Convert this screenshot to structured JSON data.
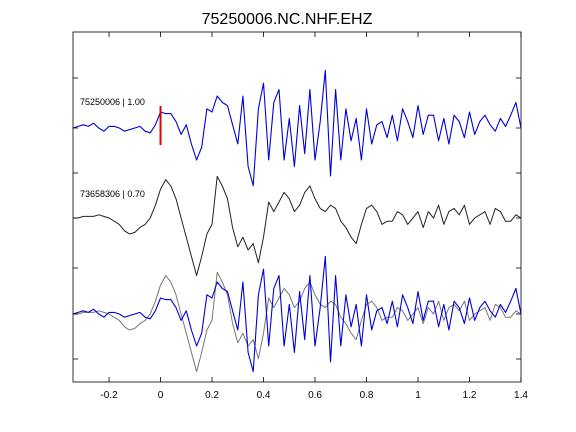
{
  "chart_data": {
    "type": "line",
    "title": "75250006.NC.NHF.EHZ",
    "xlabel": "",
    "ylabel": "",
    "xlim": [
      -0.34,
      1.4
    ],
    "x_ticks": [
      "-0.2",
      "0",
      "0.2",
      "0.4",
      "0.6",
      "0.8",
      "1",
      "1.2",
      "1.4"
    ],
    "grid": false,
    "pick_marker": {
      "x": 0,
      "color": "#e00000"
    },
    "colors": {
      "target": "#0000dd",
      "template": "#222222",
      "overlay_template": "#777777"
    },
    "series": [
      {
        "name": "75250006 | 1.00",
        "x": [
          -0.34,
          -0.32,
          -0.3,
          -0.28,
          -0.26,
          -0.24,
          -0.22,
          -0.2,
          -0.18,
          -0.16,
          -0.14,
          -0.12,
          -0.1,
          -0.08,
          -0.06,
          -0.04,
          -0.02,
          0,
          0.02,
          0.04,
          0.06,
          0.08,
          0.1,
          0.12,
          0.14,
          0.16,
          0.18,
          0.2,
          0.22,
          0.24,
          0.26,
          0.28,
          0.3,
          0.32,
          0.34,
          0.36,
          0.38,
          0.4,
          0.42,
          0.44,
          0.46,
          0.48,
          0.5,
          0.52,
          0.54,
          0.56,
          0.58,
          0.6,
          0.62,
          0.64,
          0.66,
          0.68,
          0.7,
          0.72,
          0.74,
          0.76,
          0.78,
          0.8,
          0.82,
          0.84,
          0.86,
          0.88,
          0.9,
          0.92,
          0.94,
          0.96,
          0.98,
          1,
          1.02,
          1.04,
          1.06,
          1.08,
          1.1,
          1.12,
          1.14,
          1.16,
          1.18,
          1.2,
          1.22,
          1.24,
          1.26,
          1.28,
          1.3,
          1.32,
          1.34,
          1.36,
          1.38,
          1.4
        ],
        "values": [
          0,
          0.05,
          0.1,
          0.05,
          0.15,
          0,
          -0.1,
          0.05,
          0.05,
          0,
          -0.1,
          -0.05,
          0,
          0.05,
          -0.1,
          -0.15,
          0.1,
          0.5,
          0.45,
          0.45,
          0.2,
          -0.2,
          0.1,
          -0.5,
          -1.0,
          -0.6,
          0.6,
          0.5,
          1.0,
          0.8,
          0.7,
          0.1,
          -0.5,
          1.0,
          -1.2,
          -1.8,
          0.6,
          1.4,
          -1.0,
          0.8,
          1.2,
          -1.0,
          0.3,
          -1.2,
          0.7,
          -0.8,
          1.2,
          -1.0,
          0.2,
          1.8,
          -1.5,
          1.2,
          -1.0,
          0.6,
          -0.4,
          0.3,
          -1.0,
          0.6,
          -0.5,
          0.1,
          0.2,
          -0.3,
          0.4,
          -0.4,
          0.6,
          0.2,
          -0.3,
          0.7,
          -0.2,
          0.4,
          0.4,
          -0.4,
          0.3,
          -0.5,
          0.4,
          0.2,
          -0.3,
          0.5,
          -0.2,
          0.2,
          0.4,
          0.1,
          -0.1,
          0.3,
          0.05,
          0.4,
          0.8,
          0.0
        ]
      },
      {
        "name": "73658306 | 0.70",
        "x": [
          -0.34,
          -0.32,
          -0.3,
          -0.28,
          -0.26,
          -0.24,
          -0.22,
          -0.2,
          -0.18,
          -0.16,
          -0.14,
          -0.12,
          -0.1,
          -0.08,
          -0.06,
          -0.04,
          -0.02,
          0,
          0.02,
          0.04,
          0.06,
          0.08,
          0.1,
          0.12,
          0.14,
          0.16,
          0.18,
          0.2,
          0.22,
          0.24,
          0.26,
          0.28,
          0.3,
          0.32,
          0.34,
          0.36,
          0.38,
          0.4,
          0.42,
          0.44,
          0.46,
          0.48,
          0.5,
          0.52,
          0.54,
          0.56,
          0.58,
          0.6,
          0.62,
          0.64,
          0.66,
          0.68,
          0.7,
          0.72,
          0.74,
          0.76,
          0.78,
          0.8,
          0.82,
          0.84,
          0.86,
          0.88,
          0.9,
          0.92,
          0.94,
          0.96,
          0.98,
          1,
          1.02,
          1.04,
          1.06,
          1.08,
          1.1,
          1.12,
          1.14,
          1.16,
          1.18,
          1.2,
          1.22,
          1.24,
          1.26,
          1.28,
          1.3,
          1.32,
          1.34,
          1.36,
          1.38,
          1.4
        ],
        "values": [
          0,
          0,
          0.05,
          0.05,
          0.05,
          0.1,
          0.05,
          0,
          -0.1,
          -0.2,
          -0.4,
          -0.5,
          -0.45,
          -0.3,
          -0.2,
          0,
          0.4,
          0.9,
          1.2,
          1.0,
          0.6,
          0.0,
          -0.6,
          -1.2,
          -1.8,
          -1.2,
          -0.5,
          -0.2,
          1.3,
          1.0,
          0.6,
          -0.3,
          -0.9,
          -0.6,
          -1.0,
          -0.8,
          -1.4,
          -0.6,
          0.5,
          0.2,
          0.5,
          0.8,
          0.6,
          0.2,
          0.4,
          0.8,
          1.0,
          0.6,
          0.3,
          0.2,
          0.4,
          0.3,
          -0.1,
          -0.3,
          -0.6,
          -0.8,
          -0.2,
          0.3,
          0.4,
          0.2,
          -0.2,
          -0.1,
          -0.1,
          0.2,
          0.1,
          -0.2,
          0.0,
          0.2,
          -0.3,
          0.2,
          0.0,
          0.4,
          -0.2,
          0.2,
          0.3,
          0.1,
          0.4,
          -0.2,
          0.0,
          0.1,
          0.2,
          -0.2,
          0.3,
          0.2,
          -0.1,
          -0.1,
          0.1,
          0.0
        ]
      }
    ]
  }
}
